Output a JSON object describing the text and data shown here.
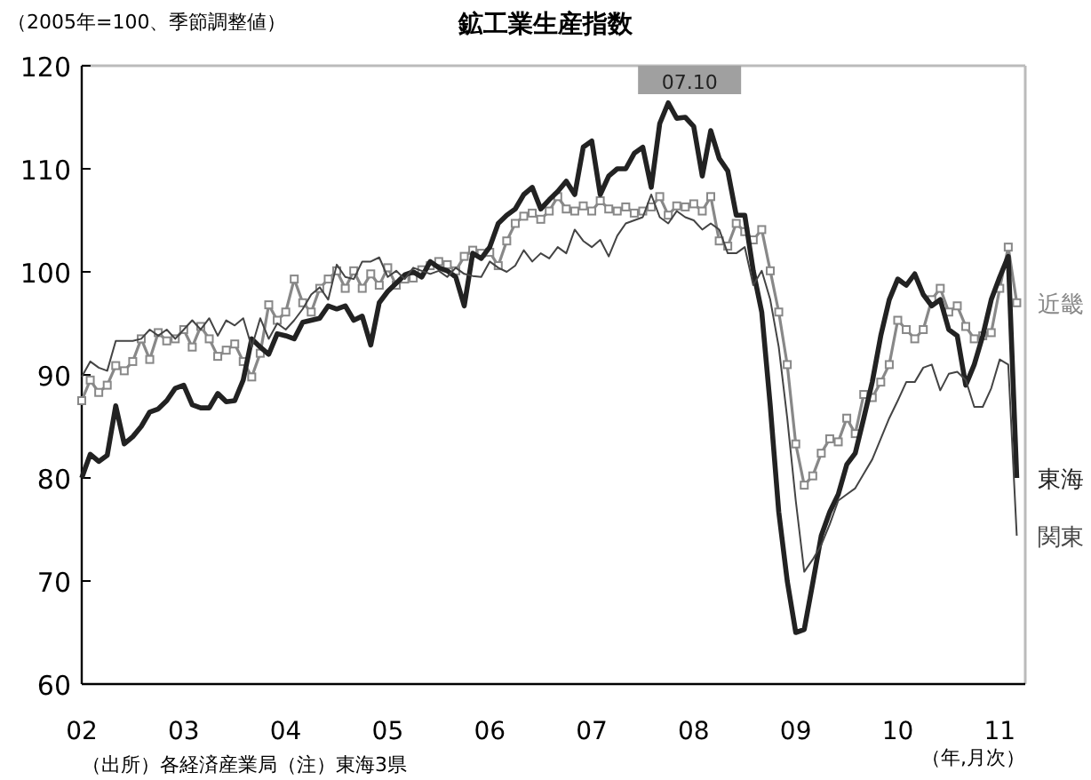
{
  "chart_data": {
    "type": "line",
    "title": "鉱工業生産指数",
    "ylabel": "（2005年=100、季節調整値）",
    "annotations": [
      {
        "text": "07.10",
        "x": "2007-10",
        "y": 116.4
      },
      "（出所）各経済産業局（注）東海3県",
      "（年,月次）"
    ],
    "x": [
      "2002-01",
      "2002-02",
      "2002-03",
      "2002-04",
      "2002-05",
      "2002-06",
      "2002-07",
      "2002-08",
      "2002-09",
      "2002-10",
      "2002-11",
      "2002-12",
      "2003-01",
      "2003-02",
      "2003-03",
      "2003-04",
      "2003-05",
      "2003-06",
      "2003-07",
      "2003-08",
      "2003-09",
      "2003-10",
      "2003-11",
      "2003-12",
      "2004-01",
      "2004-02",
      "2004-03",
      "2004-04",
      "2004-05",
      "2004-06",
      "2004-07",
      "2004-08",
      "2004-09",
      "2004-10",
      "2004-11",
      "2004-12",
      "2005-01",
      "2005-02",
      "2005-03",
      "2005-04",
      "2005-05",
      "2005-06",
      "2005-07",
      "2005-08",
      "2005-09",
      "2005-10",
      "2005-11",
      "2005-12",
      "2006-01",
      "2006-02",
      "2006-03",
      "2006-04",
      "2006-05",
      "2006-06",
      "2006-07",
      "2006-08",
      "2006-09",
      "2006-10",
      "2006-11",
      "2006-12",
      "2007-01",
      "2007-02",
      "2007-03",
      "2007-04",
      "2007-05",
      "2007-06",
      "2007-07",
      "2007-08",
      "2007-09",
      "2007-10",
      "2007-11",
      "2007-12",
      "2008-01",
      "2008-02",
      "2008-03",
      "2008-04",
      "2008-05",
      "2008-06",
      "2008-07",
      "2008-08",
      "2008-09",
      "2008-10",
      "2008-11",
      "2008-12",
      "2009-01",
      "2009-02",
      "2009-03",
      "2009-04",
      "2009-05",
      "2009-06",
      "2009-07",
      "2009-08",
      "2009-09",
      "2009-10",
      "2009-11",
      "2009-12",
      "2010-01",
      "2010-02",
      "2010-03",
      "2010-04",
      "2010-05",
      "2010-06",
      "2010-07",
      "2010-08",
      "2010-09",
      "2010-10",
      "2010-11",
      "2010-12",
      "2011-01",
      "2011-02",
      "2011-03"
    ],
    "xlim": [
      "2002-01",
      "2011-04"
    ],
    "xticks": [
      {
        "value": "2002-01",
        "label": "02"
      },
      {
        "value": "2003-01",
        "label": "03"
      },
      {
        "value": "2004-01",
        "label": "04"
      },
      {
        "value": "2005-01",
        "label": "05"
      },
      {
        "value": "2006-01",
        "label": "06"
      },
      {
        "value": "2007-01",
        "label": "07"
      },
      {
        "value": "2008-01",
        "label": "08"
      },
      {
        "value": "2009-01",
        "label": "09"
      },
      {
        "value": "2010-01",
        "label": "10"
      },
      {
        "value": "2011-01",
        "label": "11"
      }
    ],
    "ylim": [
      60,
      120
    ],
    "yticks": [
      60,
      70,
      80,
      90,
      100,
      110,
      120
    ],
    "grid": false,
    "series": [
      {
        "name": "近畿",
        "color": "#888888",
        "marker": "square",
        "values": [
          87.5,
          89.5,
          88.3,
          89,
          90.9,
          90.4,
          91.3,
          93.5,
          91.5,
          94.1,
          93.3,
          93.5,
          94.4,
          92.7,
          94.7,
          93.5,
          91.8,
          92.4,
          93,
          91.3,
          89.8,
          92.1,
          96.8,
          95.3,
          96.1,
          99.3,
          97,
          96.1,
          98.4,
          99.3,
          100.1,
          98.4,
          100.1,
          98.4,
          99.8,
          98.7,
          100.4,
          98.7,
          99.3,
          99.4,
          100.2,
          100.6,
          101,
          100.7,
          100.1,
          101.5,
          102.1,
          101.8,
          101.9,
          100.6,
          103,
          104.7,
          105.4,
          105.7,
          105.1,
          105.9,
          107.3,
          106.1,
          105.9,
          106.4,
          105.9,
          106.9,
          106.1,
          105.9,
          106.3,
          105.7,
          105.9,
          106.3,
          107.3,
          105.5,
          106.4,
          106.3,
          106.6,
          105.9,
          107.3,
          103,
          102.5,
          104.7,
          103.9,
          103.1,
          104.1,
          100.1,
          96.1,
          91,
          83.3,
          79.3,
          80.2,
          82.4,
          83.8,
          83.5,
          85.8,
          84.3,
          88.1,
          87.8,
          89.3,
          91,
          95.3,
          94.4,
          93.5,
          94.4,
          97.3,
          98.4,
          96.1,
          96.7,
          94.7,
          93.5,
          93.8,
          94.1,
          98.4,
          102.4,
          97
        ]
      },
      {
        "name": "東海",
        "color": "#222222",
        "marker": "none",
        "values": [
          80,
          82.3,
          81.6,
          82.2,
          87,
          83.3,
          84,
          85,
          86.4,
          86.7,
          87.5,
          88.7,
          89,
          87.1,
          86.8,
          86.8,
          88.2,
          87.4,
          87.5,
          89.5,
          93.5,
          92.7,
          92,
          94,
          93.8,
          93.5,
          95.1,
          95.3,
          95.5,
          96.7,
          96.4,
          96.7,
          95.3,
          95.7,
          92.9,
          97,
          98.1,
          98.9,
          99.7,
          100,
          99.5,
          101,
          100.4,
          100.1,
          99.5,
          96.7,
          101.8,
          101.3,
          102.4,
          104.7,
          105.5,
          106.1,
          107.5,
          108.2,
          106.1,
          107,
          107.8,
          108.8,
          107.5,
          112.1,
          112.7,
          107.5,
          109.3,
          110,
          110,
          111.5,
          112.1,
          108.2,
          114.4,
          116.4,
          114.9,
          115,
          114.1,
          109.3,
          113.7,
          111,
          109.8,
          105.5,
          105.5,
          100.1,
          96.1,
          87,
          76.7,
          70,
          65,
          65.3,
          69.8,
          74.4,
          76.7,
          78.4,
          81.3,
          82.4,
          85.8,
          89.3,
          93.8,
          97.3,
          99.3,
          98.7,
          99.8,
          97.8,
          96.7,
          97.3,
          94.4,
          93.8,
          89,
          91,
          93.8,
          97.3,
          99.5,
          101.5,
          80
        ]
      },
      {
        "name": "関東",
        "color": "#444444",
        "marker": "none",
        "values": [
          89.8,
          91.3,
          90.7,
          90.4,
          93.3,
          93.3,
          93.3,
          93.5,
          94.4,
          93.8,
          94.4,
          93.5,
          94.4,
          95.3,
          94.4,
          95.5,
          93.8,
          95.3,
          94.8,
          95.5,
          92.7,
          95.5,
          93.5,
          95,
          94.4,
          95.3,
          96.4,
          97.8,
          98.5,
          97.3,
          100.7,
          99.5,
          99.3,
          101,
          101,
          101.4,
          99.5,
          100.1,
          99.3,
          100.4,
          100.1,
          99.8,
          100.1,
          99.5,
          100.4,
          99.8,
          99.6,
          99.5,
          101,
          100.4,
          100,
          100.6,
          102.1,
          101,
          101.8,
          101.3,
          102.4,
          101.8,
          104.1,
          103,
          102.4,
          103.1,
          101.5,
          103.5,
          104.7,
          105,
          105.3,
          107.5,
          105.3,
          104.7,
          105.9,
          105.3,
          105,
          104.1,
          104.7,
          104.1,
          101.8,
          101.8,
          102.4,
          98.7,
          100.1,
          97.3,
          92.7,
          85.8,
          77.8,
          70.9,
          72.1,
          73.5,
          75.5,
          77.8,
          78.4,
          79,
          80.4,
          81.8,
          83.8,
          85.8,
          87.5,
          89.3,
          89.3,
          90.7,
          91,
          88.5,
          90.1,
          90.3,
          89.5,
          86.9,
          86.9,
          88.7,
          91.5,
          91,
          74.4
        ]
      }
    ]
  }
}
